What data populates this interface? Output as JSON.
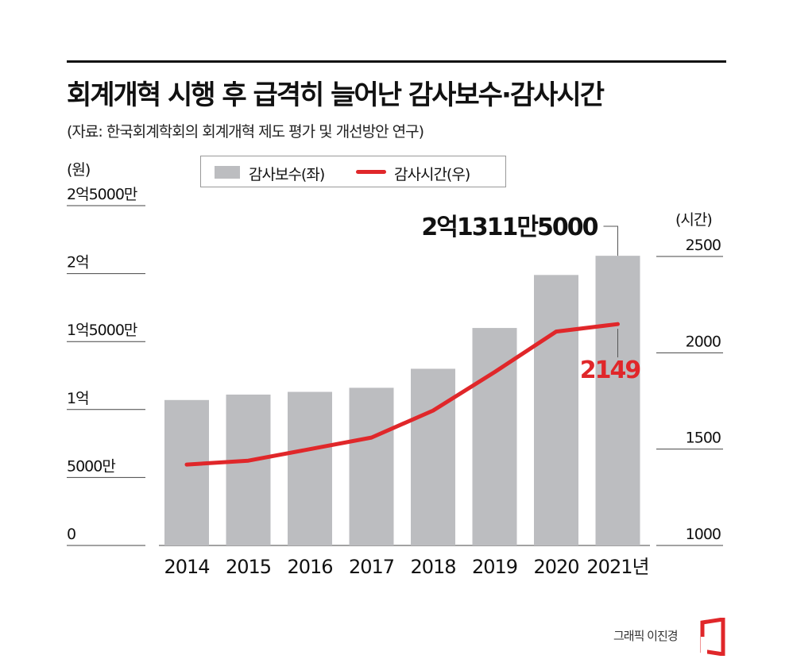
{
  "title": "회계개혁 시행 후 급격히 늘어난 감사보수·감사시간",
  "source": "(자료: 한국회계학회의 회계개혁 제도 평가 및 개선방안 연구)",
  "unit_left": "(원)",
  "unit_right": "(시간)",
  "legend": {
    "bar_label": "감사보수(좌)",
    "line_label": "감사시간(우)"
  },
  "credit": "그래픽 이진경",
  "colors": {
    "bar": "#bcbdc0",
    "line": "#e0272a",
    "rule": "#111111"
  },
  "chart_data": {
    "type": "bar",
    "categories": [
      "2014",
      "2015",
      "2016",
      "2017",
      "2018",
      "2019",
      "2020",
      "2021년"
    ],
    "series": [
      {
        "name": "감사보수(좌)",
        "type": "bar",
        "axis": "left",
        "values": [
          107000000,
          111000000,
          113000000,
          116000000,
          130000000,
          160000000,
          199000000,
          213115000
        ]
      },
      {
        "name": "감사시간(우)",
        "type": "line",
        "axis": "right",
        "values": [
          1420,
          1440,
          1500,
          1560,
          1700,
          1900,
          2110,
          2149
        ]
      }
    ],
    "left_axis": {
      "label": "(원)",
      "range": [
        0,
        250000000
      ],
      "ticks": [
        {
          "value": 0,
          "label": "0"
        },
        {
          "value": 50000000,
          "label": "5000만"
        },
        {
          "value": 100000000,
          "label": "1억"
        },
        {
          "value": 150000000,
          "label": "1억5000만"
        },
        {
          "value": 200000000,
          "label": "2억"
        },
        {
          "value": 250000000,
          "label": "2억5000만"
        }
      ]
    },
    "right_axis": {
      "label": "(시간)",
      "range": [
        1000,
        2500
      ],
      "ticks": [
        {
          "value": 1000,
          "label": "1000"
        },
        {
          "value": 1500,
          "label": "1500"
        },
        {
          "value": 2000,
          "label": "2000"
        },
        {
          "value": 2500,
          "label": "2500"
        }
      ]
    },
    "annotations": [
      {
        "series": "감사보수(좌)",
        "category": "2021년",
        "text": "2억1311만5000",
        "color": "#111111"
      },
      {
        "series": "감사시간(우)",
        "category": "2021년",
        "text": "2149",
        "color": "#e0272a"
      }
    ],
    "legend_position": "top"
  }
}
